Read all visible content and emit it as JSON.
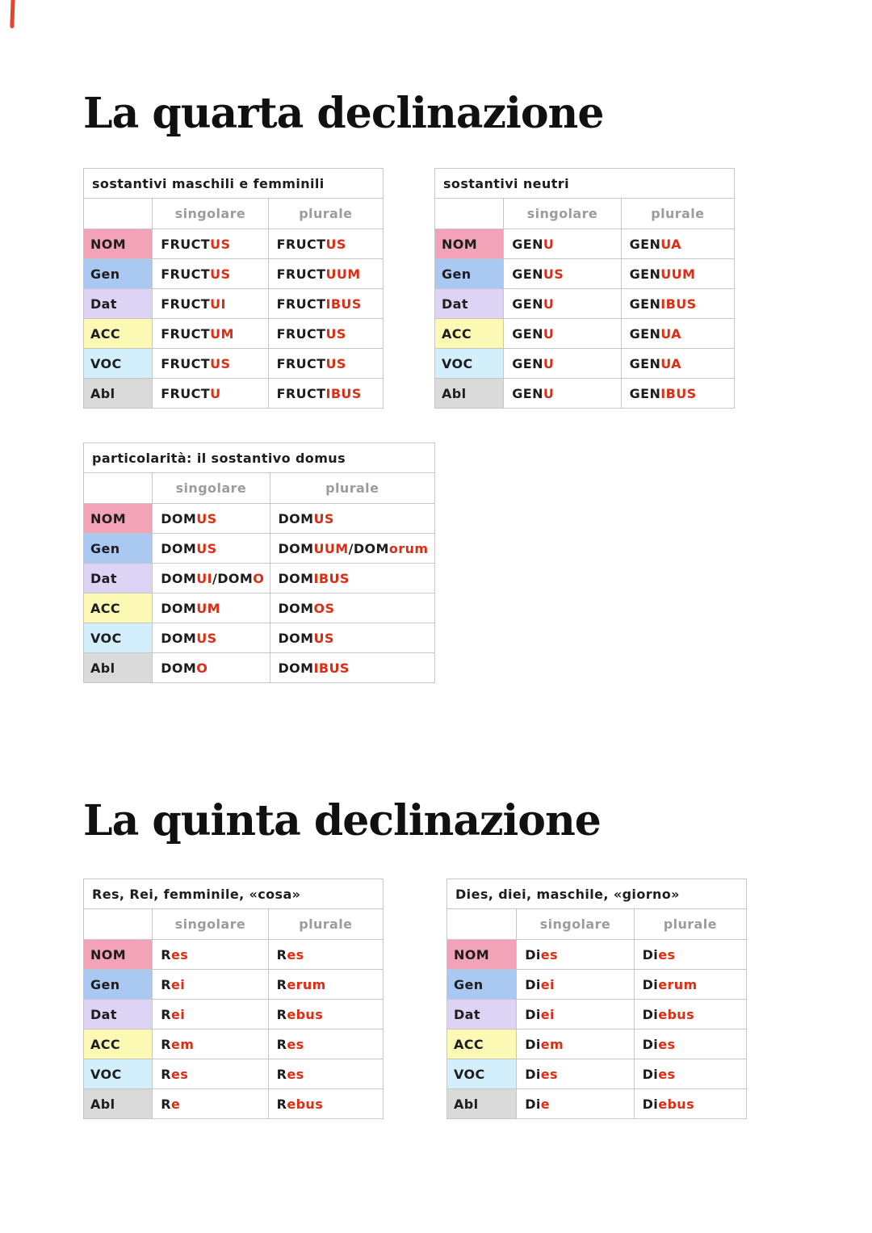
{
  "decor": {
    "pen_mark_color": "#e8432c"
  },
  "colors": {
    "stem": "#1d1d1f",
    "ending": "#de2d12",
    "header_gray": "#9c9c9c",
    "label_nom": "#f2a3b8",
    "label_gen": "#a9c8f2",
    "label_dat": "#ddd3f5",
    "label_acc": "#fbf9b4",
    "label_voc": "#d2effb",
    "label_abl": "#dadada"
  },
  "sections": [
    {
      "title": "La quarta declinazione"
    },
    {
      "title": "La quinta declinazione"
    }
  ],
  "tables": [
    {
      "title": "sostantivi maschili e femminili",
      "col_headers": [
        "singolare",
        "plurale"
      ],
      "rows": [
        {
          "label": "NOM",
          "color": "#f2a3b8",
          "sing": [
            [
              "FRUCT",
              "stem"
            ],
            [
              "US",
              "end"
            ]
          ],
          "plur": [
            [
              "FRUCT",
              "stem"
            ],
            [
              "US",
              "end"
            ]
          ]
        },
        {
          "label": "Gen",
          "color": "#a9c8f2",
          "sing": [
            [
              "FRUCT",
              "stem"
            ],
            [
              "US",
              "end"
            ]
          ],
          "plur": [
            [
              "FRUCT",
              "stem"
            ],
            [
              "UUM",
              "end"
            ]
          ]
        },
        {
          "label": "Dat",
          "color": "#ddd3f5",
          "sing": [
            [
              "FRUCT",
              "stem"
            ],
            [
              "UI",
              "end"
            ]
          ],
          "plur": [
            [
              "FRUCT",
              "stem"
            ],
            [
              "IBUS",
              "end"
            ]
          ]
        },
        {
          "label": "ACC",
          "color": "#fbf9b4",
          "sing": [
            [
              "FRUCT",
              "stem"
            ],
            [
              "UM",
              "end"
            ]
          ],
          "plur": [
            [
              "FRUCT",
              "stem"
            ],
            [
              "US",
              "end"
            ]
          ]
        },
        {
          "label": "VOC",
          "color": "#d2effb",
          "sing": [
            [
              "FRUCT",
              "stem"
            ],
            [
              "US",
              "end"
            ]
          ],
          "plur": [
            [
              "FRUCT",
              "stem"
            ],
            [
              "US",
              "end"
            ]
          ]
        },
        {
          "label": "Abl",
          "color": "#dadada",
          "sing": [
            [
              "FRUCT",
              "stem"
            ],
            [
              "U",
              "end"
            ]
          ],
          "plur": [
            [
              "FRUCT",
              "stem"
            ],
            [
              "IBUS",
              "end"
            ]
          ]
        }
      ]
    },
    {
      "title": "sostantivi neutri",
      "col_headers": [
        "singolare",
        "plurale"
      ],
      "rows": [
        {
          "label": "NOM",
          "color": "#f2a3b8",
          "sing": [
            [
              "GEN",
              "stem"
            ],
            [
              "U",
              "end"
            ]
          ],
          "plur": [
            [
              "GEN",
              "stem"
            ],
            [
              "UA",
              "end"
            ]
          ]
        },
        {
          "label": "Gen",
          "color": "#a9c8f2",
          "sing": [
            [
              "GEN",
              "stem"
            ],
            [
              "US",
              "end"
            ]
          ],
          "plur": [
            [
              "GEN",
              "stem"
            ],
            [
              "UUM",
              "end"
            ]
          ]
        },
        {
          "label": "Dat",
          "color": "#ddd3f5",
          "sing": [
            [
              "GEN",
              "stem"
            ],
            [
              "U",
              "end"
            ]
          ],
          "plur": [
            [
              "GEN",
              "stem"
            ],
            [
              "IBUS",
              "end"
            ]
          ]
        },
        {
          "label": "ACC",
          "color": "#fbf9b4",
          "sing": [
            [
              "GEN",
              "stem"
            ],
            [
              "U",
              "end"
            ]
          ],
          "plur": [
            [
              "GEN",
              "stem"
            ],
            [
              "UA",
              "end"
            ]
          ]
        },
        {
          "label": "VOC",
          "color": "#d2effb",
          "sing": [
            [
              "GEN",
              "stem"
            ],
            [
              "U",
              "end"
            ]
          ],
          "plur": [
            [
              "GEN",
              "stem"
            ],
            [
              "UA",
              "end"
            ]
          ]
        },
        {
          "label": "Abl",
          "color": "#dadada",
          "sing": [
            [
              "GEN",
              "stem"
            ],
            [
              "U",
              "end"
            ]
          ],
          "plur": [
            [
              "GEN",
              "stem"
            ],
            [
              "IBUS",
              "end"
            ]
          ]
        }
      ]
    },
    {
      "title": "particolarità: il sostantivo domus",
      "col_headers": [
        "singolare",
        "plurale"
      ],
      "rows": [
        {
          "label": "NOM",
          "color": "#f2a3b8",
          "sing": [
            [
              "DOM",
              "stem"
            ],
            [
              "US",
              "end"
            ]
          ],
          "plur": [
            [
              "DOM",
              "stem"
            ],
            [
              "US",
              "end"
            ]
          ]
        },
        {
          "label": "Gen",
          "color": "#a9c8f2",
          "sing": [
            [
              "DOM",
              "stem"
            ],
            [
              "US",
              "end"
            ]
          ],
          "plur": [
            [
              "DOM",
              "stem"
            ],
            [
              "UUM",
              "end"
            ],
            [
              "/",
              "stem"
            ],
            [
              "DOM",
              "stem"
            ],
            [
              "orum",
              "end"
            ]
          ]
        },
        {
          "label": "Dat",
          "color": "#ddd3f5",
          "sing": [
            [
              "DOM",
              "stem"
            ],
            [
              "UI",
              "end"
            ],
            [
              "/",
              "stem"
            ],
            [
              "DOM",
              "stem"
            ],
            [
              "O",
              "end"
            ]
          ],
          "plur": [
            [
              "DOM",
              "stem"
            ],
            [
              "IBUS",
              "end"
            ]
          ]
        },
        {
          "label": "ACC",
          "color": "#fbf9b4",
          "sing": [
            [
              "DOM",
              "stem"
            ],
            [
              "UM",
              "end"
            ]
          ],
          "plur": [
            [
              "DOM",
              "stem"
            ],
            [
              "OS",
              "end"
            ]
          ]
        },
        {
          "label": "VOC",
          "color": "#d2effb",
          "sing": [
            [
              "DOM",
              "stem"
            ],
            [
              "US",
              "end"
            ]
          ],
          "plur": [
            [
              "DOM",
              "stem"
            ],
            [
              "US",
              "end"
            ]
          ]
        },
        {
          "label": "Abl",
          "color": "#dadada",
          "sing": [
            [
              "DOM",
              "stem"
            ],
            [
              "O",
              "end"
            ]
          ],
          "plur": [
            [
              "DOM",
              "stem"
            ],
            [
              "IBUS",
              "end"
            ]
          ]
        }
      ]
    },
    {
      "title": "Res, Rei, femminile, «cosa»",
      "col_headers": [
        "singolare",
        "plurale"
      ],
      "rows": [
        {
          "label": "NOM",
          "color": "#f2a3b8",
          "sing": [
            [
              "R",
              "stem"
            ],
            [
              "es",
              "end"
            ]
          ],
          "plur": [
            [
              "R",
              "stem"
            ],
            [
              "es",
              "end"
            ]
          ]
        },
        {
          "label": "Gen",
          "color": "#a9c8f2",
          "sing": [
            [
              "R",
              "stem"
            ],
            [
              "ei",
              "end"
            ]
          ],
          "plur": [
            [
              "R",
              "stem"
            ],
            [
              "erum",
              "end"
            ]
          ]
        },
        {
          "label": "Dat",
          "color": "#ddd3f5",
          "sing": [
            [
              "R",
              "stem"
            ],
            [
              "ei",
              "end"
            ]
          ],
          "plur": [
            [
              "R",
              "stem"
            ],
            [
              "ebus",
              "end"
            ]
          ]
        },
        {
          "label": "ACC",
          "color": "#fbf9b4",
          "sing": [
            [
              "R",
              "stem"
            ],
            [
              "em",
              "end"
            ]
          ],
          "plur": [
            [
              "R",
              "stem"
            ],
            [
              "es",
              "end"
            ]
          ]
        },
        {
          "label": "VOC",
          "color": "#d2effb",
          "sing": [
            [
              "R",
              "stem"
            ],
            [
              "es",
              "end"
            ]
          ],
          "plur": [
            [
              "R",
              "stem"
            ],
            [
              "es",
              "end"
            ]
          ]
        },
        {
          "label": "Abl",
          "color": "#dadada",
          "sing": [
            [
              "R",
              "stem"
            ],
            [
              "e",
              "end"
            ]
          ],
          "plur": [
            [
              "R",
              "stem"
            ],
            [
              "ebus",
              "end"
            ]
          ]
        }
      ]
    },
    {
      "title": "Dies, diei, maschile, «giorno»",
      "col_headers": [
        "singolare",
        "plurale"
      ],
      "rows": [
        {
          "label": "NOM",
          "color": "#f2a3b8",
          "sing": [
            [
              "Di",
              "stem"
            ],
            [
              "es",
              "end"
            ]
          ],
          "plur": [
            [
              "Di",
              "stem"
            ],
            [
              "es",
              "end"
            ]
          ]
        },
        {
          "label": "Gen",
          "color": "#a9c8f2",
          "sing": [
            [
              "Di",
              "stem"
            ],
            [
              "ei",
              "end"
            ]
          ],
          "plur": [
            [
              "Di",
              "stem"
            ],
            [
              "erum",
              "end"
            ]
          ]
        },
        {
          "label": "Dat",
          "color": "#ddd3f5",
          "sing": [
            [
              "Di",
              "stem"
            ],
            [
              "ei",
              "end"
            ]
          ],
          "plur": [
            [
              "Di",
              "stem"
            ],
            [
              "ebus",
              "end"
            ]
          ]
        },
        {
          "label": "ACC",
          "color": "#fbf9b4",
          "sing": [
            [
              "Di",
              "stem"
            ],
            [
              "em",
              "end"
            ]
          ],
          "plur": [
            [
              "Di",
              "stem"
            ],
            [
              "es",
              "end"
            ]
          ]
        },
        {
          "label": "VOC",
          "color": "#d2effb",
          "sing": [
            [
              "Di",
              "stem"
            ],
            [
              "es",
              "end"
            ]
          ],
          "plur": [
            [
              "Di",
              "stem"
            ],
            [
              "es",
              "end"
            ]
          ]
        },
        {
          "label": "Abl",
          "color": "#dadada",
          "sing": [
            [
              "Di",
              "stem"
            ],
            [
              "e",
              "end"
            ]
          ],
          "plur": [
            [
              "Di",
              "stem"
            ],
            [
              "ebus",
              "end"
            ]
          ]
        }
      ]
    }
  ]
}
